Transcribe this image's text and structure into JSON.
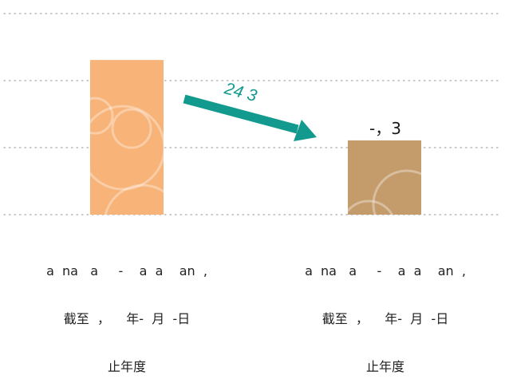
{
  "chart_data": {
    "type": "bar",
    "categories": [
      [
        "a  na   a     -    a  a    an  ,",
        "截至  ，    年-  月  -日",
        "止年度"
      ],
      [
        "a  na   a     -    a  a    an  ,",
        "截至  ，    年-  月  -日",
        "止年度"
      ]
    ],
    "values": [
      100,
      48
    ],
    "value_labels": [
      "",
      "-，3"
    ],
    "arrow_label": "24 3",
    "ylim": [
      0,
      130
    ],
    "grid": true,
    "colors": {
      "bars": [
        "#f7b378",
        "#c49b6a"
      ],
      "arrow": "#139a8e",
      "grid": "#b8b8b8",
      "ring": "#ffffff"
    }
  }
}
